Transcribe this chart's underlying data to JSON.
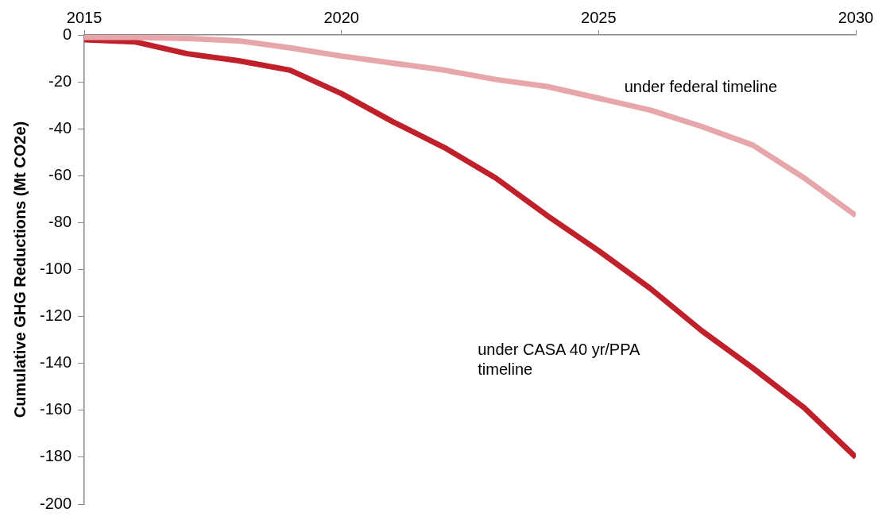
{
  "chart_data": {
    "type": "line",
    "ylabel": "Cumulative GHG Reductions (Mt CO2e)",
    "x": [
      2015,
      2016,
      2017,
      2018,
      2019,
      2020,
      2021,
      2022,
      2023,
      2024,
      2025,
      2026,
      2027,
      2028,
      2029,
      2030
    ],
    "series": [
      {
        "name": "under federal timeline",
        "color": "#e6a6aa",
        "values": [
          -1,
          -1,
          -1.5,
          -2.5,
          -5.5,
          -9,
          -12,
          -15,
          -19,
          -22,
          -27,
          -32,
          -39,
          -47,
          -61,
          -77
        ]
      },
      {
        "name": "under CASA 40 yr/PPA timeline",
        "color": "#c0202a",
        "values": [
          -2,
          -3,
          -8,
          -11,
          -15,
          -25,
          -37,
          -48,
          -61,
          -77,
          -92,
          -108,
          -126,
          -142,
          -159,
          -180
        ]
      }
    ],
    "xlim": [
      2015,
      2030
    ],
    "xticks": [
      2015,
      2020,
      2025,
      2030
    ],
    "ylim": [
      -200,
      0
    ],
    "yticks": [
      0,
      -20,
      -40,
      -60,
      -80,
      -100,
      -120,
      -140,
      -160,
      -180,
      -200
    ],
    "grid": false,
    "legend": false,
    "marker": "none",
    "line_style": "solid"
  }
}
